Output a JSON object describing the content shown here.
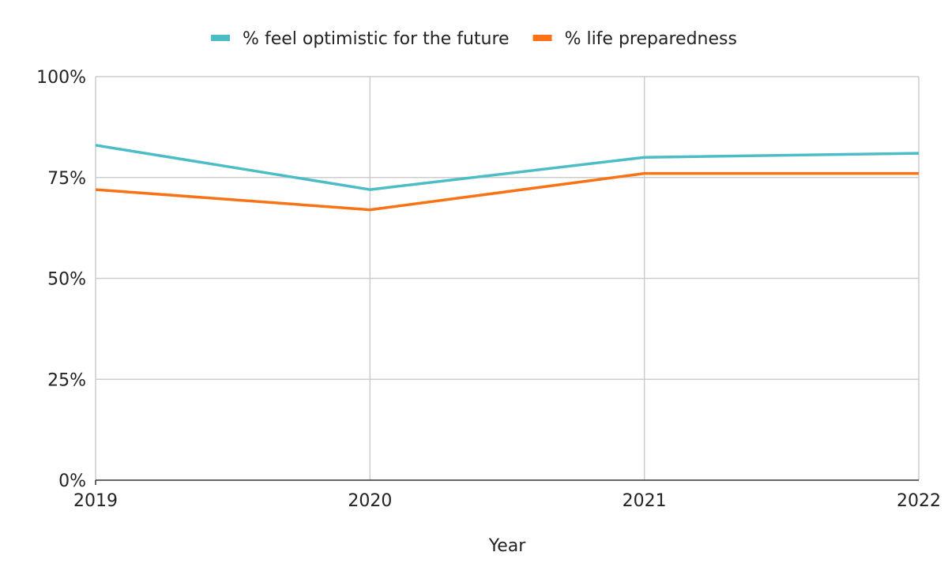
{
  "chart_data": {
    "type": "line",
    "title": "",
    "xlabel": "Year",
    "ylabel": "",
    "x": [
      "2019",
      "2020",
      "2021",
      "2022"
    ],
    "ylim": [
      0,
      100
    ],
    "y_ticks": [
      "0%",
      "25%",
      "50%",
      "75%",
      "100%"
    ],
    "grid": true,
    "legend_position": "top",
    "series": [
      {
        "name": "% feel optimistic for the future",
        "color": "#4dbdc5",
        "values": [
          83,
          72,
          80,
          81
        ]
      },
      {
        "name": "% life preparedness",
        "color": "#f97316",
        "values": [
          72,
          67,
          76,
          76
        ]
      }
    ]
  }
}
